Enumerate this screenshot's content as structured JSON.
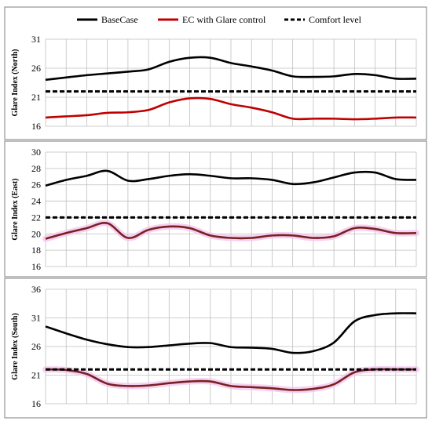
{
  "legend": [
    {
      "name": "BaseCase",
      "color": "#000000",
      "dash": "solid"
    },
    {
      "name": "EC with Glare control",
      "color": "#c00000",
      "dash": "solid"
    },
    {
      "name": "Comfort level",
      "color": "#000000",
      "dash": "dashed"
    }
  ],
  "chart_data": [
    {
      "type": "line",
      "ylabel": "Glare Index (North)",
      "ylim": [
        16,
        31
      ],
      "yticks": [
        16,
        21,
        26,
        31
      ],
      "x": [
        1,
        2,
        3,
        4,
        5,
        6,
        7,
        8,
        9,
        10,
        11,
        12,
        13,
        14,
        15,
        16,
        17,
        18,
        19
      ],
      "grid": true,
      "series": [
        {
          "name": "BaseCase",
          "color": "#000000",
          "dash": "solid",
          "values": [
            24.0,
            24.4,
            24.8,
            25.1,
            25.4,
            25.8,
            27.1,
            27.8,
            27.8,
            26.9,
            26.3,
            25.6,
            24.6,
            24.5,
            24.6,
            25.0,
            24.8,
            24.2,
            24.2
          ]
        },
        {
          "name": "EC with Glare control",
          "color": "#c00000",
          "dash": "solid",
          "values": [
            17.5,
            17.7,
            17.9,
            18.3,
            18.4,
            18.8,
            20.1,
            20.8,
            20.7,
            19.8,
            19.2,
            18.4,
            17.3,
            17.3,
            17.3,
            17.2,
            17.3,
            17.5,
            17.5
          ]
        },
        {
          "name": "Comfort level",
          "color": "#000000",
          "dash": "dashed",
          "values": [
            22,
            22,
            22,
            22,
            22,
            22,
            22,
            22,
            22,
            22,
            22,
            22,
            22,
            22,
            22,
            22,
            22,
            22,
            22
          ]
        }
      ]
    },
    {
      "type": "line",
      "ylabel": "Glare Index (East)",
      "ylim": [
        16,
        30
      ],
      "yticks": [
        16,
        18,
        20,
        22,
        24,
        26,
        28,
        30
      ],
      "x": [
        1,
        2,
        3,
        4,
        5,
        6,
        7,
        8,
        9,
        10,
        11,
        12,
        13,
        14,
        15,
        16,
        17,
        18,
        19
      ],
      "grid": true,
      "series": [
        {
          "name": "BaseCase",
          "color": "#000000",
          "dash": "solid",
          "values": [
            25.9,
            26.6,
            27.1,
            27.7,
            26.5,
            26.7,
            27.1,
            27.3,
            27.1,
            26.8,
            26.8,
            26.6,
            26.1,
            26.3,
            26.9,
            27.5,
            27.5,
            26.7,
            26.6
          ]
        },
        {
          "name": "EC with Glare control",
          "color": "#7a2020",
          "dash": "solid",
          "values": [
            19.4,
            20.1,
            20.7,
            21.3,
            19.5,
            20.5,
            20.9,
            20.7,
            19.8,
            19.5,
            19.5,
            19.8,
            19.8,
            19.5,
            19.7,
            20.7,
            20.6,
            20.1,
            20.1
          ]
        },
        {
          "name": "Comfort level",
          "color": "#000000",
          "dash": "dashed",
          "values": [
            22,
            22,
            22,
            22,
            22,
            22,
            22,
            22,
            22,
            22,
            22,
            22,
            22,
            22,
            22,
            22,
            22,
            22,
            22
          ]
        }
      ]
    },
    {
      "type": "line",
      "ylabel": "Glare Index (South)",
      "ylim": [
        16,
        36
      ],
      "yticks": [
        16,
        21,
        26,
        31,
        36
      ],
      "x": [
        1,
        2,
        3,
        4,
        5,
        6,
        7,
        8,
        9,
        10,
        11,
        12,
        13,
        14,
        15,
        16,
        17,
        18,
        19
      ],
      "grid": true,
      "series": [
        {
          "name": "BaseCase",
          "color": "#000000",
          "dash": "solid",
          "values": [
            29.5,
            28.3,
            27.2,
            26.4,
            25.9,
            25.9,
            26.2,
            26.5,
            26.6,
            25.9,
            25.8,
            25.6,
            24.9,
            25.2,
            26.7,
            30.4,
            31.5,
            31.8,
            31.8
          ]
        },
        {
          "name": "EC with Glare control",
          "color": "#7a2020",
          "dash": "solid",
          "values": [
            22.0,
            21.9,
            21.2,
            19.5,
            19.1,
            19.2,
            19.6,
            19.9,
            19.9,
            19.1,
            18.9,
            18.7,
            18.4,
            18.6,
            19.4,
            21.5,
            22.0,
            22.0,
            22.0
          ]
        },
        {
          "name": "Comfort level",
          "color": "#000000",
          "dash": "dashed",
          "values": [
            22,
            22,
            22,
            22,
            22,
            22,
            22,
            22,
            22,
            22,
            22,
            22,
            22,
            22,
            22,
            22,
            22,
            22,
            22
          ]
        }
      ]
    }
  ]
}
